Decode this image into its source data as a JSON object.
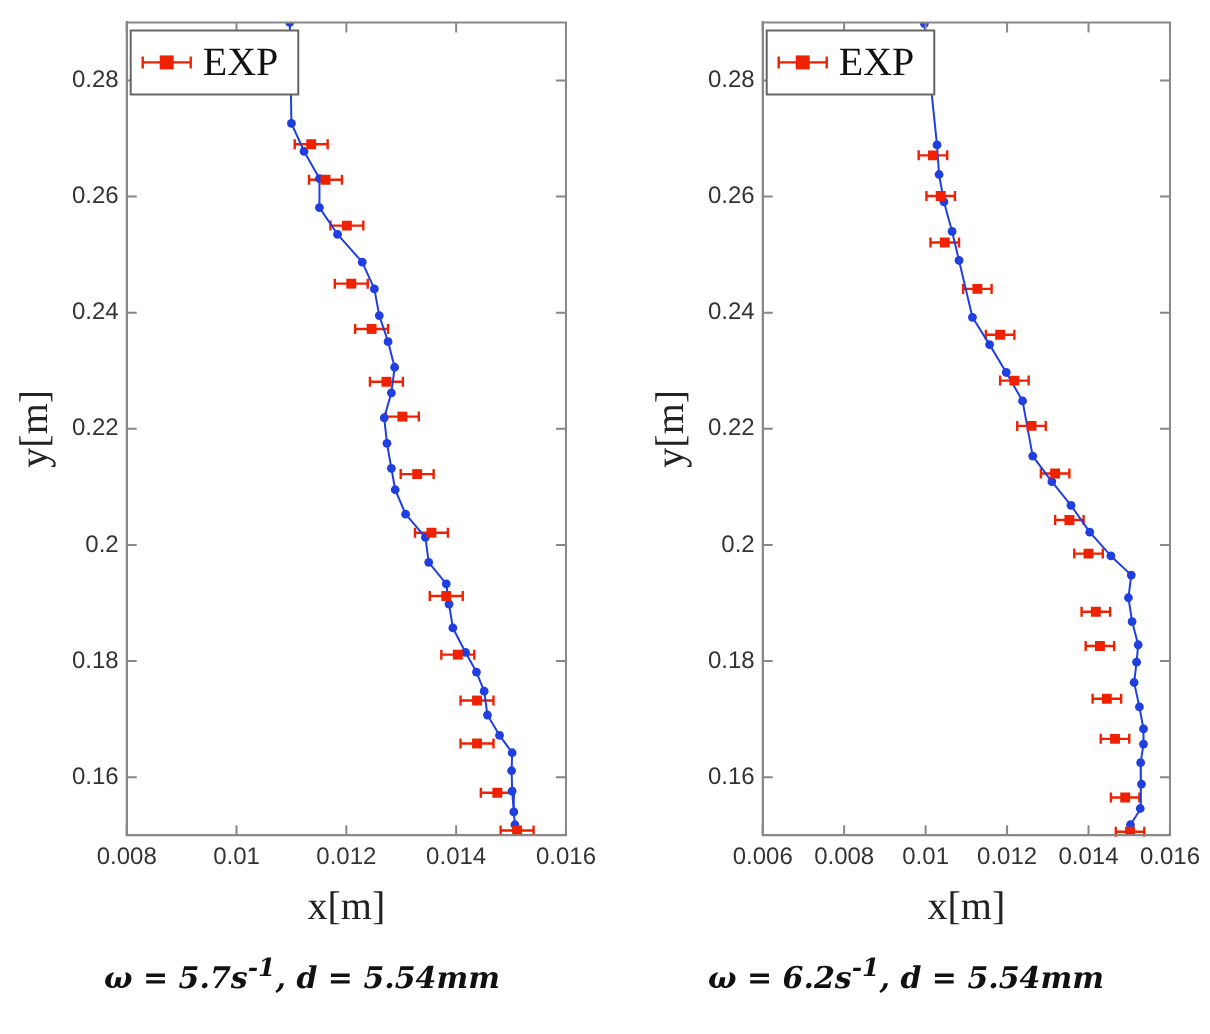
{
  "chart_data": [
    {
      "type": "line",
      "xlabel": "x[m]",
      "ylabel": "y[m]",
      "xlim": [
        0.008,
        0.016
      ],
      "ylim": [
        0.15,
        0.29
      ],
      "xticks": [
        0.008,
        0.01,
        0.012,
        0.014,
        0.016
      ],
      "yticks": [
        0.16,
        0.18,
        0.2,
        0.22,
        0.24,
        0.26,
        0.28
      ],
      "grid": false,
      "legend": "top left",
      "annotations": [
        "ω = 5.7s$^{-1}$, d = 5.54mm"
      ],
      "series": [
        {
          "type": "line",
          "color": "#1f3fe0",
          "marker": "circle",
          "x": [
            0.01097,
            0.011,
            0.01123,
            0.01151,
            0.01151,
            0.01184,
            0.01229,
            0.01251,
            0.0126,
            0.01276,
            0.01288,
            0.01282,
            0.01269,
            0.01274,
            0.01282,
            0.01289,
            0.01308,
            0.01344,
            0.0135,
            0.01382,
            0.01387,
            0.01394,
            0.01417,
            0.01437,
            0.01451,
            0.01457,
            0.01479,
            0.01502,
            0.01501,
            0.01502,
            0.01505,
            0.01507
          ],
          "values": [
            0.29,
            0.2726,
            0.2678,
            0.2631,
            0.2581,
            0.2535,
            0.2487,
            0.2441,
            0.2395,
            0.235,
            0.2306,
            0.2262,
            0.2219,
            0.2175,
            0.2132,
            0.2095,
            0.2053,
            0.2013,
            0.197,
            0.1933,
            0.1898,
            0.1857,
            0.1815,
            0.1781,
            0.1748,
            0.1707,
            0.1672,
            0.1642,
            0.1611,
            0.1576,
            0.154,
            0.1518
          ]
        },
        {
          "type": "scatter",
          "name": "EXP",
          "color": "#ee2200",
          "marker": "square",
          "x": [
            0.01136,
            0.01162,
            0.01201,
            0.01209,
            0.01246,
            0.01273,
            0.01302,
            0.01329,
            0.01355,
            0.01382,
            0.01403,
            0.01438,
            0.01438,
            0.01475,
            0.01511
          ],
          "values": [
            0.269,
            0.2629,
            0.255,
            0.245,
            0.2372,
            0.2281,
            0.2221,
            0.2122,
            0.2021,
            0.1912,
            0.1811,
            0.1732,
            0.1658,
            0.1573,
            0.1508
          ],
          "xerrors": [
            0.0003,
            0.0003,
            0.0003,
            0.0003,
            0.0003,
            0.0003,
            0.0003,
            0.0003,
            0.0003,
            0.0003,
            0.0003,
            0.0003,
            0.0003,
            0.0003,
            0.0003
          ]
        }
      ]
    },
    {
      "type": "line",
      "xlabel": "x[m]",
      "ylabel": "y[m]",
      "xlim": [
        0.006,
        0.016
      ],
      "ylim": [
        0.15,
        0.29
      ],
      "xticks": [
        0.006,
        0.008,
        0.01,
        0.012,
        0.014,
        0.016
      ],
      "yticks": [
        0.16,
        0.18,
        0.2,
        0.22,
        0.24,
        0.26,
        0.28
      ],
      "grid": false,
      "legend": "top left",
      "annotations": [
        "ω = 6.2s$^{-1}$, d = 5.54mm"
      ],
      "series": [
        {
          "type": "line",
          "color": "#1f3fe0",
          "marker": "circle",
          "x": [
            0.00997,
            0.01028,
            0.01033,
            0.01045,
            0.01065,
            0.01082,
            0.01115,
            0.01157,
            0.01198,
            0.01238,
            0.01263,
            0.0131,
            0.01357,
            0.01403,
            0.01455,
            0.01505,
            0.01498,
            0.01507,
            0.01522,
            0.01518,
            0.01512,
            0.01525,
            0.01535,
            0.01535,
            0.01528,
            0.0153,
            0.01527,
            0.01503
          ],
          "values": [
            0.2898,
            0.2689,
            0.2638,
            0.2591,
            0.254,
            0.249,
            0.2392,
            0.2345,
            0.2297,
            0.2248,
            0.2153,
            0.2109,
            0.2068,
            0.2022,
            0.1981,
            0.1948,
            0.1909,
            0.1868,
            0.1828,
            0.1798,
            0.1763,
            0.1721,
            0.1683,
            0.1657,
            0.1625,
            0.1588,
            0.1546,
            0.1518
          ]
        },
        {
          "type": "scatter",
          "name": "EXP",
          "color": "#ee2200",
          "marker": "square",
          "x": [
            0.01018,
            0.01037,
            0.01047,
            0.01127,
            0.01183,
            0.01218,
            0.0126,
            0.01318,
            0.01353,
            0.014,
            0.01418,
            0.01428,
            0.01445,
            0.01465,
            0.0149,
            0.01502
          ],
          "values": [
            0.2671,
            0.2601,
            0.2521,
            0.2441,
            0.2362,
            0.2283,
            0.2205,
            0.2123,
            0.2043,
            0.1985,
            0.1885,
            0.1826,
            0.1735,
            0.1666,
            0.1565,
            0.1506
          ],
          "xerrors": [
            0.00035,
            0.00035,
            0.00035,
            0.00035,
            0.00035,
            0.00035,
            0.00035,
            0.00035,
            0.00035,
            0.00035,
            0.00035,
            0.00035,
            0.00035,
            0.00035,
            0.00035,
            0.00035
          ]
        }
      ]
    }
  ]
}
